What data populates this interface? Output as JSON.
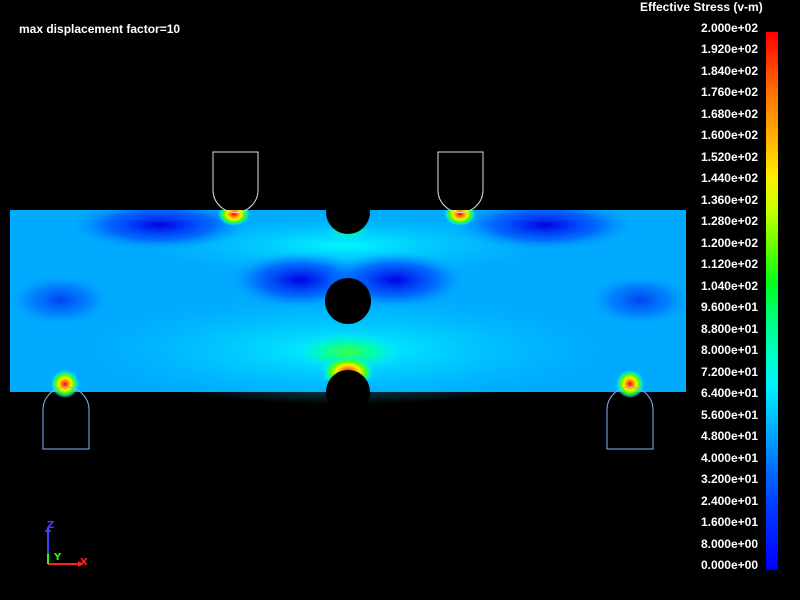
{
  "viewport": {
    "annotation": "max displacement factor=10"
  },
  "legend": {
    "title": "Effective Stress (v-m)",
    "ticks": [
      "2.000e+02",
      "1.920e+02",
      "1.840e+02",
      "1.760e+02",
      "1.680e+02",
      "1.600e+02",
      "1.520e+02",
      "1.440e+02",
      "1.360e+02",
      "1.280e+02",
      "1.200e+02",
      "1.120e+02",
      "1.040e+02",
      "9.600e+01",
      "8.800e+01",
      "8.000e+01",
      "7.200e+01",
      "6.400e+01",
      "5.600e+01",
      "4.800e+01",
      "4.000e+01",
      "3.200e+01",
      "2.400e+01",
      "1.600e+01",
      "8.000e+00",
      "0.000e+00"
    ],
    "colormap": [
      "#0000ff",
      "#0078ff",
      "#00f0ff",
      "#00ff78",
      "#64ff00",
      "#ffee00",
      "#ff7800",
      "#ff0000"
    ]
  },
  "triad": {
    "axes": {
      "z": "Z",
      "y": "Y",
      "x": "X"
    },
    "colors": {
      "x": "#ff2020",
      "y": "#20ff20",
      "z": "#4040ff"
    }
  }
}
